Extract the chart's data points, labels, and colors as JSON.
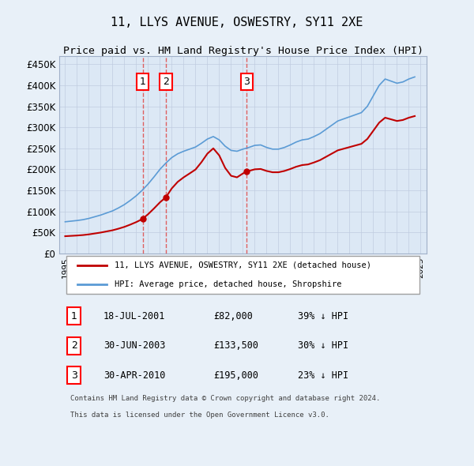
{
  "title": "11, LLYS AVENUE, OSWESTRY, SY11 2XE",
  "subtitle": "Price paid vs. HM Land Registry's House Price Index (HPI)",
  "background_color": "#e8f0f8",
  "plot_bg_color": "#dce8f5",
  "legend_label_red": "11, LLYS AVENUE, OSWESTRY, SY11 2XE (detached house)",
  "legend_label_blue": "HPI: Average price, detached house, Shropshire",
  "footer1": "Contains HM Land Registry data © Crown copyright and database right 2024.",
  "footer2": "This data is licensed under the Open Government Licence v3.0.",
  "sales": [
    {
      "id": 1,
      "date_label": "18-JUL-2001",
      "year": 2001.54,
      "price": 82000,
      "pct": "39%",
      "dir": "↓"
    },
    {
      "id": 2,
      "date_label": "30-JUN-2003",
      "year": 2003.5,
      "price": 133500,
      "pct": "30%",
      "dir": "↓"
    },
    {
      "id": 3,
      "date_label": "30-APR-2010",
      "year": 2010.33,
      "price": 195000,
      "pct": "23%",
      "dir": "↓"
    }
  ],
  "ylim": [
    0,
    470000
  ],
  "yticks": [
    0,
    50000,
    100000,
    150000,
    200000,
    250000,
    300000,
    350000,
    400000,
    450000
  ],
  "xlim": [
    1994.5,
    2025.5
  ],
  "hpi_color": "#5b9bd5",
  "price_color": "#c00000",
  "red_line_color": "#c00000",
  "dashed_color": "#e05050"
}
